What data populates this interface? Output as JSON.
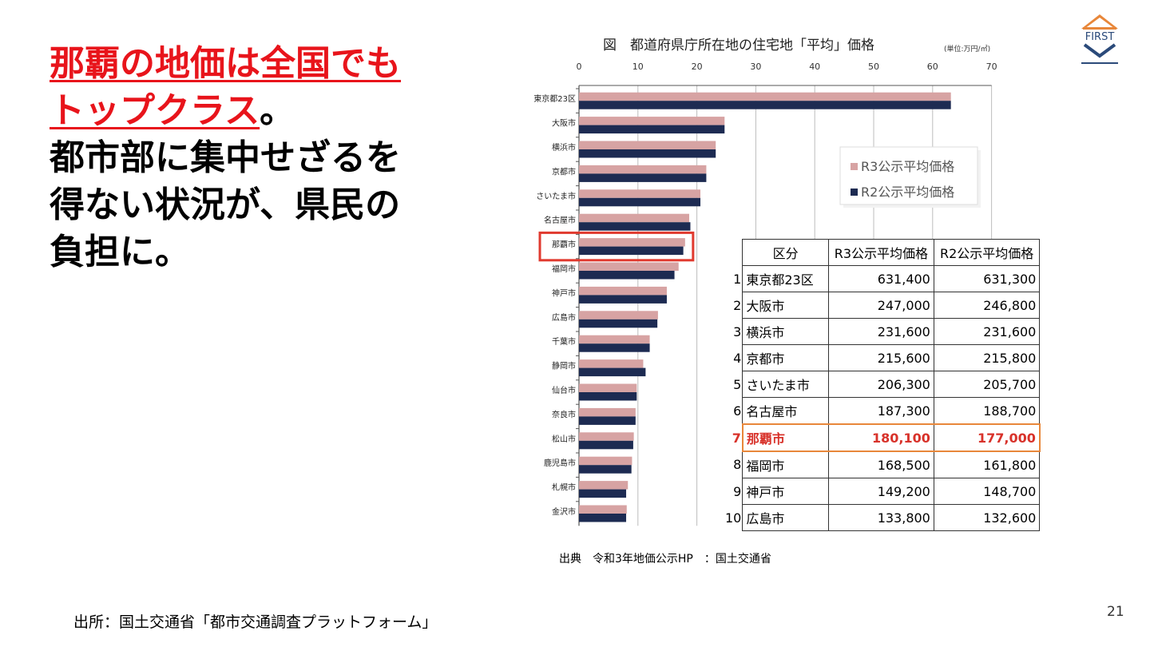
{
  "headline": {
    "red_line1": "那覇の地価は全国でも",
    "red_line2": "トップクラス",
    "punct": "。",
    "line3": "都市部に集中せざるを",
    "line4": "得ない状況が、県民の",
    "line5": "負担に。"
  },
  "footer_source": "出所：国土交通省「都市交通調査プラットフォーム」",
  "page_number": "21",
  "logo": {
    "text": "FIRST",
    "colors": {
      "roof": "#e8873a",
      "shield": "#2b4a7a"
    }
  },
  "chart_data": {
    "type": "bar",
    "orientation": "horizontal",
    "title": "図　都道府県庁所在地の住宅地「平均」価格",
    "unit": "(単位:万円/㎡)",
    "xlim": [
      0,
      70
    ],
    "xticks": [
      "0",
      "10",
      "20",
      "30",
      "40",
      "50",
      "60",
      "70"
    ],
    "categories": [
      "東京都23区",
      "大阪市",
      "横浜市",
      "京都市",
      "さいたま市",
      "名古屋市",
      "那覇市",
      "福岡市",
      "神戸市",
      "広島市",
      "千葉市",
      "静岡市",
      "仙台市",
      "奈良市",
      "松山市",
      "鹿児島市",
      "札幌市",
      "金沢市"
    ],
    "highlight_category": "那覇市",
    "series": [
      {
        "name": "R3公示平均価格",
        "color": "#d7a3a3",
        "values": [
          63.1,
          24.7,
          23.2,
          21.6,
          20.6,
          18.7,
          18.0,
          16.9,
          14.9,
          13.4,
          12.0,
          10.9,
          9.8,
          9.6,
          9.3,
          9.0,
          8.3,
          8.1
        ]
      },
      {
        "name": "R2公示平均価格",
        "color": "#1d2b52",
        "values": [
          63.1,
          24.7,
          23.2,
          21.6,
          20.6,
          18.9,
          17.7,
          16.2,
          14.9,
          13.3,
          12.0,
          11.3,
          9.8,
          9.6,
          9.2,
          8.9,
          8.0,
          8.0
        ]
      }
    ],
    "legend": [
      "R3公示平均価格",
      "R2公示平均価格"
    ],
    "table": {
      "headers": [
        "区分",
        "R3公示平均価格",
        "R2公示平均価格"
      ],
      "rows": [
        {
          "rank": "1",
          "name": "東京都23区",
          "r3": "631,400",
          "r2": "631,300"
        },
        {
          "rank": "2",
          "name": "大阪市",
          "r3": "247,000",
          "r2": "246,800"
        },
        {
          "rank": "3",
          "name": "横浜市",
          "r3": "231,600",
          "r2": "231,600"
        },
        {
          "rank": "4",
          "name": "京都市",
          "r3": "215,600",
          "r2": "215,800"
        },
        {
          "rank": "5",
          "name": "さいたま市",
          "r3": "206,300",
          "r2": "205,700"
        },
        {
          "rank": "6",
          "name": "名古屋市",
          "r3": "187,300",
          "r2": "188,700"
        },
        {
          "rank": "7",
          "name": "那覇市",
          "r3": "180,100",
          "r2": "177,000"
        },
        {
          "rank": "8",
          "name": "福岡市",
          "r3": "168,500",
          "r2": "161,800"
        },
        {
          "rank": "9",
          "name": "神戸市",
          "r3": "149,200",
          "r2": "148,700"
        },
        {
          "rank": "10",
          "name": "広島市",
          "r3": "133,800",
          "r2": "132,600"
        }
      ]
    },
    "source_note": "出典　令和3年地価公示HP　：国土交通省"
  }
}
